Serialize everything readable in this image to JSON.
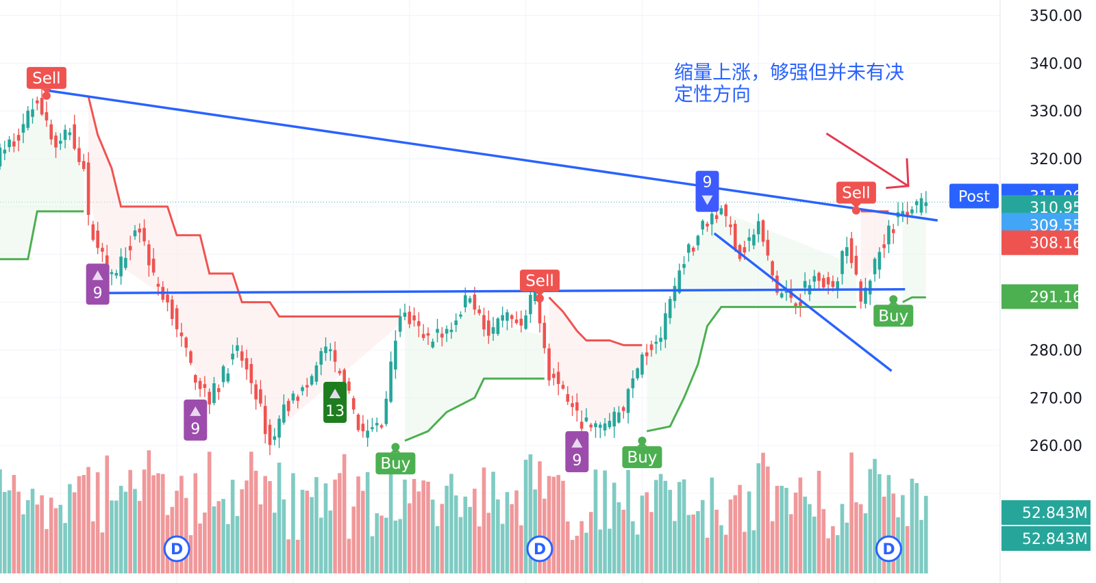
{
  "chart_data": {
    "type": "candlestick",
    "y_axis": {
      "ticks": [
        "350.00",
        "340.00",
        "330.00",
        "320.00",
        "280.00",
        "270.00",
        "260.00"
      ],
      "ylim": [
        252,
        351.5
      ]
    },
    "price_labels": [
      {
        "name": "Post",
        "value": "311.06",
        "color": "#2962ff"
      },
      {
        "value": "310.95",
        "color": "#26a69a"
      },
      {
        "value": "309.55",
        "color": "#42a5f5"
      },
      {
        "value": "308.16",
        "color": "#ef5350"
      },
      {
        "value": "291.16",
        "color": "#4caf50"
      }
    ],
    "volume_labels": [
      "52.843M",
      "52.843M"
    ],
    "annotation": {
      "line1": "缩量上涨，够强但并未有决",
      "line2": "定性方向"
    },
    "signals": [
      {
        "type": "sell",
        "text": "Sell",
        "x": 10,
        "price": 333.2
      },
      {
        "type": "buy",
        "text": "Buy",
        "x": 85,
        "price": 259.7
      },
      {
        "type": "sell",
        "text": "Sell",
        "x": 116,
        "price": 290.8
      },
      {
        "type": "buy",
        "text": "Buy",
        "x": 138,
        "price": 261.0
      },
      {
        "type": "sell",
        "text": "Sell",
        "x": 184,
        "price": 309.2
      },
      {
        "type": "buy",
        "text": "Buy",
        "x": 192,
        "price": 290.6
      }
    ],
    "counts": [
      {
        "text": "9",
        "x": 21,
        "dir": "up",
        "color": "#9c4dab"
      },
      {
        "text": "9",
        "x": 42,
        "dir": "up",
        "color": "#9c4dab"
      },
      {
        "text": "13",
        "x": 72,
        "dir": "up",
        "color": "#1e7d1e"
      },
      {
        "text": "9",
        "x": 124,
        "dir": "up",
        "color": "#9c4dab"
      },
      {
        "text": "9",
        "x": 152,
        "dir": "down",
        "color": "#3d5afe"
      }
    ],
    "event_markers": [
      {
        "text": "D",
        "x": 38
      },
      {
        "text": "D",
        "x": 116
      },
      {
        "text": "D",
        "x": 191
      }
    ],
    "colors": {
      "up": "#26a69a",
      "down": "#ef5350",
      "trendline": "#2962ff",
      "supertrend_up": "#4caf50",
      "supertrend_down": "#ef5350"
    }
  }
}
